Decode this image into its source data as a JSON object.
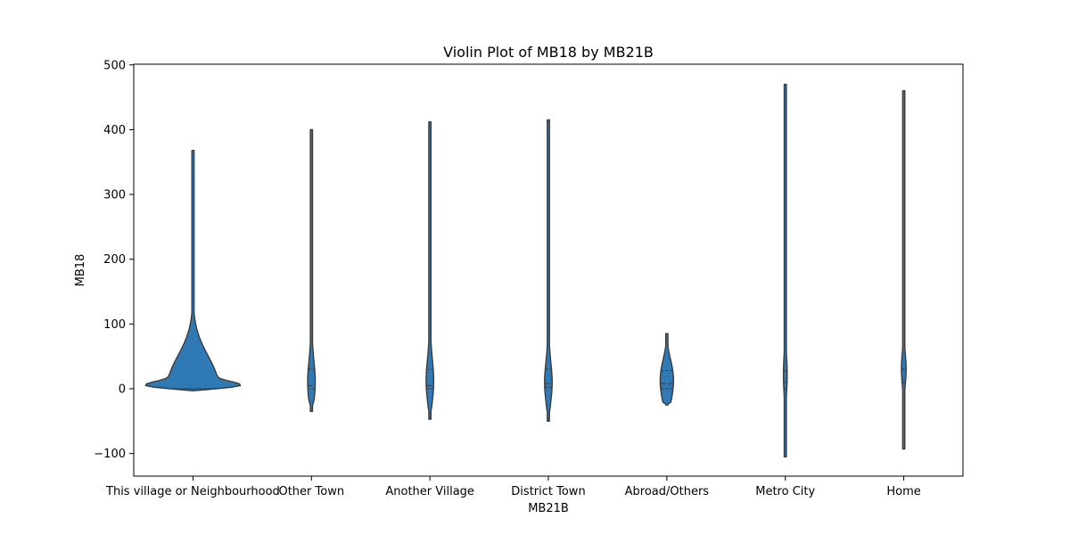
{
  "chart_data": {
    "type": "violin",
    "title": "Violin Plot of MB18 by MB21B",
    "xlabel": "MB21B",
    "ylabel": "MB18",
    "ylim": [
      -135,
      500
    ],
    "yticks": [
      -100,
      0,
      100,
      200,
      300,
      400,
      500
    ],
    "grid": false,
    "categories": [
      "This village or Neighbourhood",
      "Other Town",
      "Another Village",
      "District Town",
      "Abroad/Others",
      "Metro City",
      "Home"
    ],
    "violins": [
      {
        "category": "This village or Neighbourhood",
        "min": -3,
        "max": 368,
        "q1": 0,
        "median": 0,
        "q3": 0,
        "peak_value": 0,
        "relative_peak_width": 1.0
      },
      {
        "category": "Other Town",
        "min": -35,
        "max": 400,
        "q1": 0,
        "median": 5,
        "q3": 30,
        "peak_value": 8,
        "relative_peak_width": 0.08
      },
      {
        "category": "Another Village",
        "min": -47,
        "max": 412,
        "q1": 0,
        "median": 5,
        "q3": 30,
        "peak_value": 10,
        "relative_peak_width": 0.08
      },
      {
        "category": "District Town",
        "min": -50,
        "max": 415,
        "q1": 2,
        "median": 8,
        "q3": 30,
        "peak_value": 8,
        "relative_peak_width": 0.08
      },
      {
        "category": "Abroad/Others",
        "min": -25,
        "max": 85,
        "q1": 0,
        "median": 8,
        "q3": 28,
        "peak_value": 5,
        "relative_peak_width": 0.14
      },
      {
        "category": "Metro City",
        "min": -105,
        "max": 470,
        "q1": 0,
        "median": 10,
        "q3": 27,
        "peak_value": 20,
        "relative_peak_width": 0.04
      },
      {
        "category": "Home",
        "min": -93,
        "max": 460,
        "q1": 10,
        "median": 15,
        "q3": 30,
        "peak_value": 30,
        "relative_peak_width": 0.05
      }
    ],
    "colors": {
      "fill": "#2f7ab5",
      "edge": "#3b3b3b"
    }
  }
}
